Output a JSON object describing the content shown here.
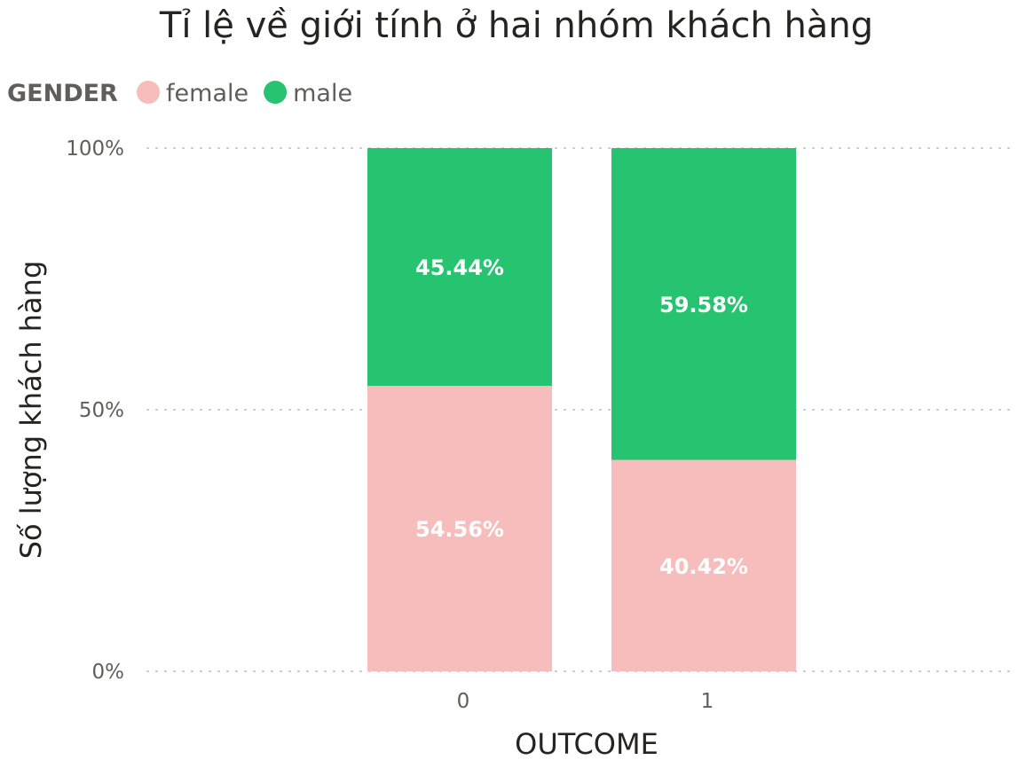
{
  "chart_data": {
    "type": "bar",
    "stacked": true,
    "title": "Tỉ lệ về giới tính ở hai nhóm khách hàng",
    "legend_title": "GENDER",
    "legend_position": "top-left",
    "xlabel": "OUTCOME",
    "ylabel": "Số lượng khách hàng",
    "categories": [
      "0",
      "1"
    ],
    "ylim": [
      0,
      100
    ],
    "yticks": [
      {
        "value": 0,
        "label": "0%"
      },
      {
        "value": 50,
        "label": "50%"
      },
      {
        "value": 100,
        "label": "100%"
      }
    ],
    "grid": true,
    "series": [
      {
        "name": "female",
        "color": "#f7bcbc",
        "values": [
          54.56,
          40.42
        ],
        "labels": [
          "54.56%",
          "40.42%"
        ]
      },
      {
        "name": "male",
        "color": "#26c470",
        "values": [
          45.44,
          59.58
        ],
        "labels": [
          "45.44%",
          "59.58%"
        ]
      }
    ]
  }
}
